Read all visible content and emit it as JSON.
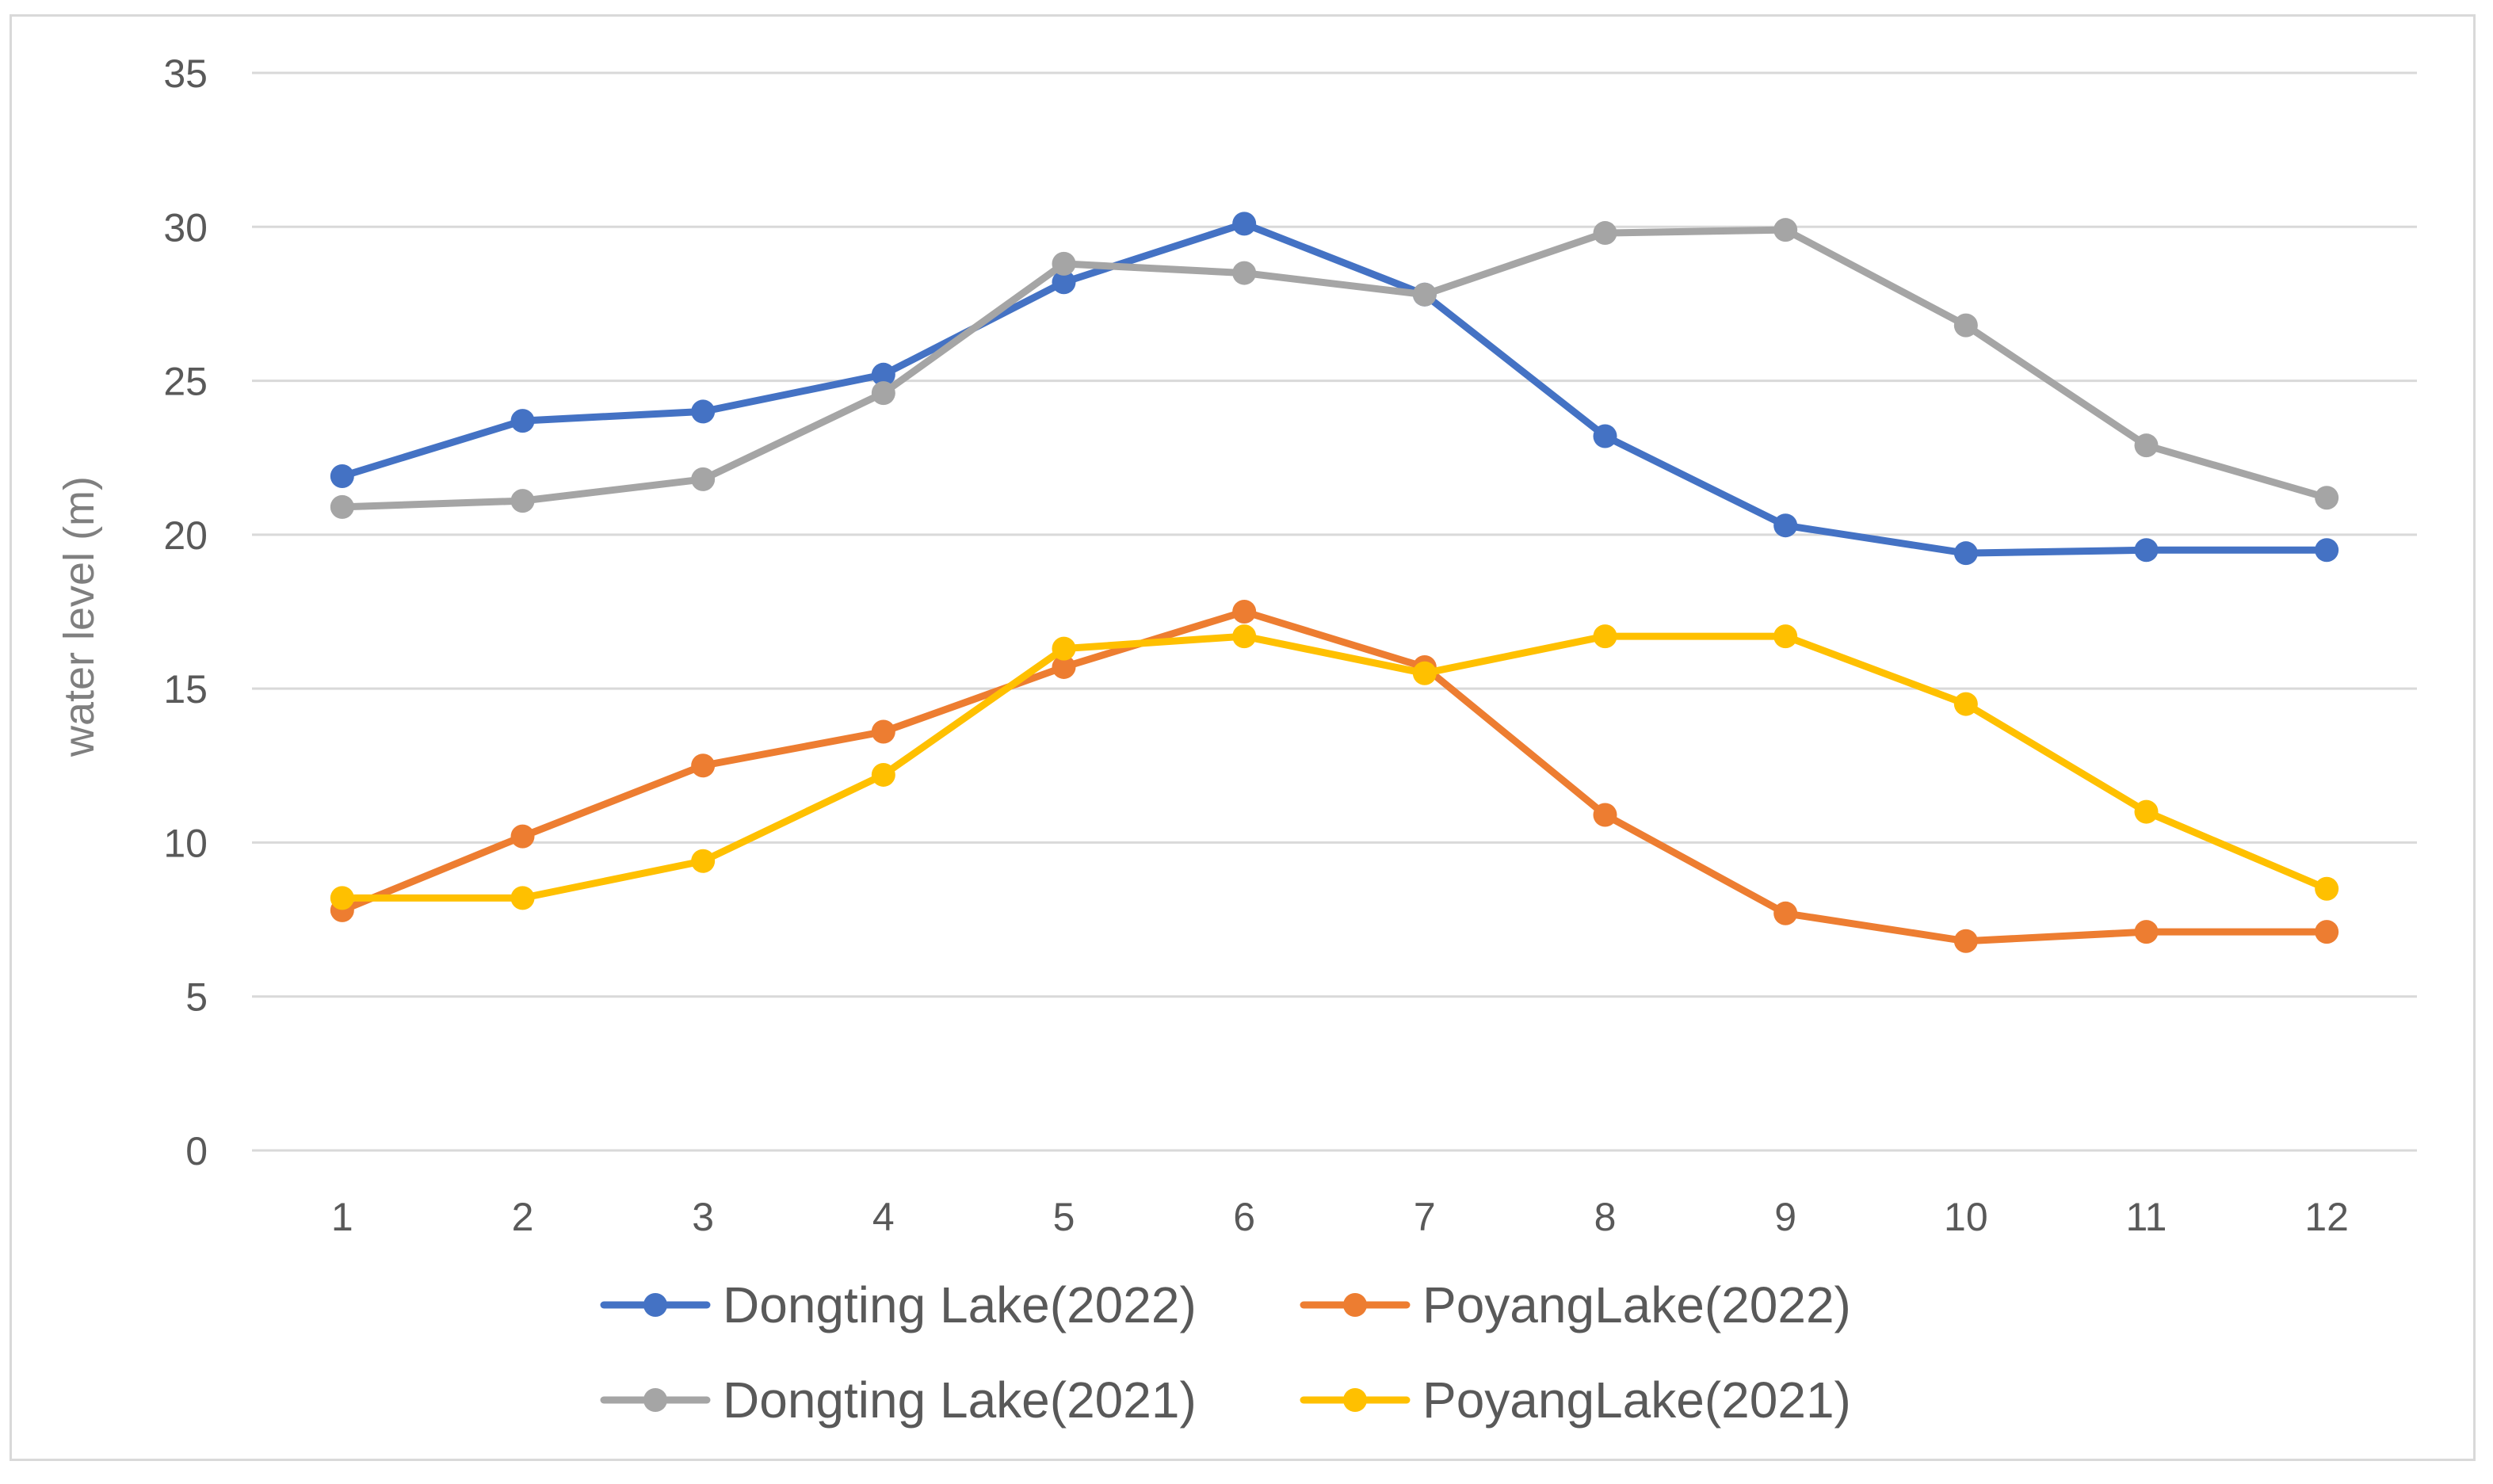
{
  "chart_data": {
    "type": "line",
    "title": "",
    "xlabel": "",
    "ylabel": "water level (m)",
    "ylim": [
      0,
      35
    ],
    "yticks": [
      0,
      5,
      10,
      15,
      20,
      25,
      30,
      35
    ],
    "categories": [
      "1",
      "2",
      "3",
      "4",
      "5",
      "6",
      "7",
      "8",
      "9",
      "10",
      "11",
      "12"
    ],
    "grid": "horizontal",
    "legend_position": "bottom",
    "series": [
      {
        "name": "Dongting Lake(2022)",
        "color": "#4472c4",
        "values": [
          21.9,
          23.7,
          24.0,
          25.2,
          28.2,
          30.1,
          27.8,
          23.2,
          20.3,
          19.4,
          19.5,
          19.5
        ]
      },
      {
        "name": "PoyangLake(2022)",
        "color": "#ed7d31",
        "values": [
          7.8,
          10.2,
          12.5,
          13.6,
          15.7,
          17.5,
          15.7,
          10.9,
          7.7,
          6.8,
          7.1,
          7.1
        ]
      },
      {
        "name": "Dongting Lake(2021)",
        "color": "#a5a5a5",
        "values": [
          20.9,
          21.1,
          21.8,
          24.6,
          28.8,
          28.5,
          27.8,
          29.8,
          29.9,
          26.8,
          22.9,
          21.2
        ]
      },
      {
        "name": "PoyangLake(2021)",
        "color": "#ffc000",
        "values": [
          8.2,
          8.2,
          9.4,
          12.2,
          16.3,
          16.7,
          15.5,
          16.7,
          16.7,
          14.5,
          11.0,
          8.5
        ]
      }
    ]
  }
}
